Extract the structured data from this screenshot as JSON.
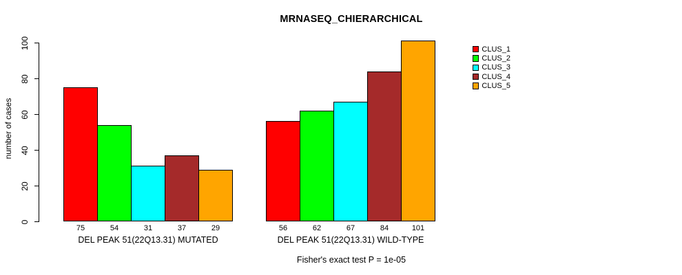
{
  "title": "MRNASEQ_CHIERARCHICAL",
  "footer": "Fisher's exact test P = 1e-05",
  "chart_data": {
    "type": "bar",
    "title": "MRNASEQ_CHIERARCHICAL",
    "ylabel": "number of cases",
    "xlabel": "",
    "ylim": [
      0,
      100
    ],
    "yticks": [
      0,
      20,
      40,
      60,
      80,
      100
    ],
    "grid": false,
    "legend_position": "right-outside",
    "bar_value_labels": true,
    "annotation": "Fisher's exact test P = 1e-05",
    "categories": [
      "DEL PEAK 51(22Q13.31) MUTATED",
      "DEL PEAK 51(22Q13.31) WILD-TYPE"
    ],
    "groups": [
      {
        "label": "DEL PEAK 51(22Q13.31) MUTATED",
        "values": [
          75,
          54,
          31,
          37,
          29
        ]
      },
      {
        "label": "DEL PEAK 51(22Q13.31) WILD-TYPE",
        "values": [
          56,
          62,
          67,
          84,
          101
        ]
      }
    ],
    "series": [
      {
        "name": "CLUS_1",
        "color": "#FF0000",
        "values": [
          75,
          56
        ]
      },
      {
        "name": "CLUS_2",
        "color": "#00FF00",
        "values": [
          54,
          62
        ]
      },
      {
        "name": "CLUS_3",
        "color": "#00FFFF",
        "values": [
          31,
          67
        ]
      },
      {
        "name": "CLUS_4",
        "color": "#A52A2A",
        "values": [
          37,
          84
        ]
      },
      {
        "name": "CLUS_5",
        "color": "#FFA500",
        "values": [
          29,
          101
        ]
      }
    ]
  }
}
